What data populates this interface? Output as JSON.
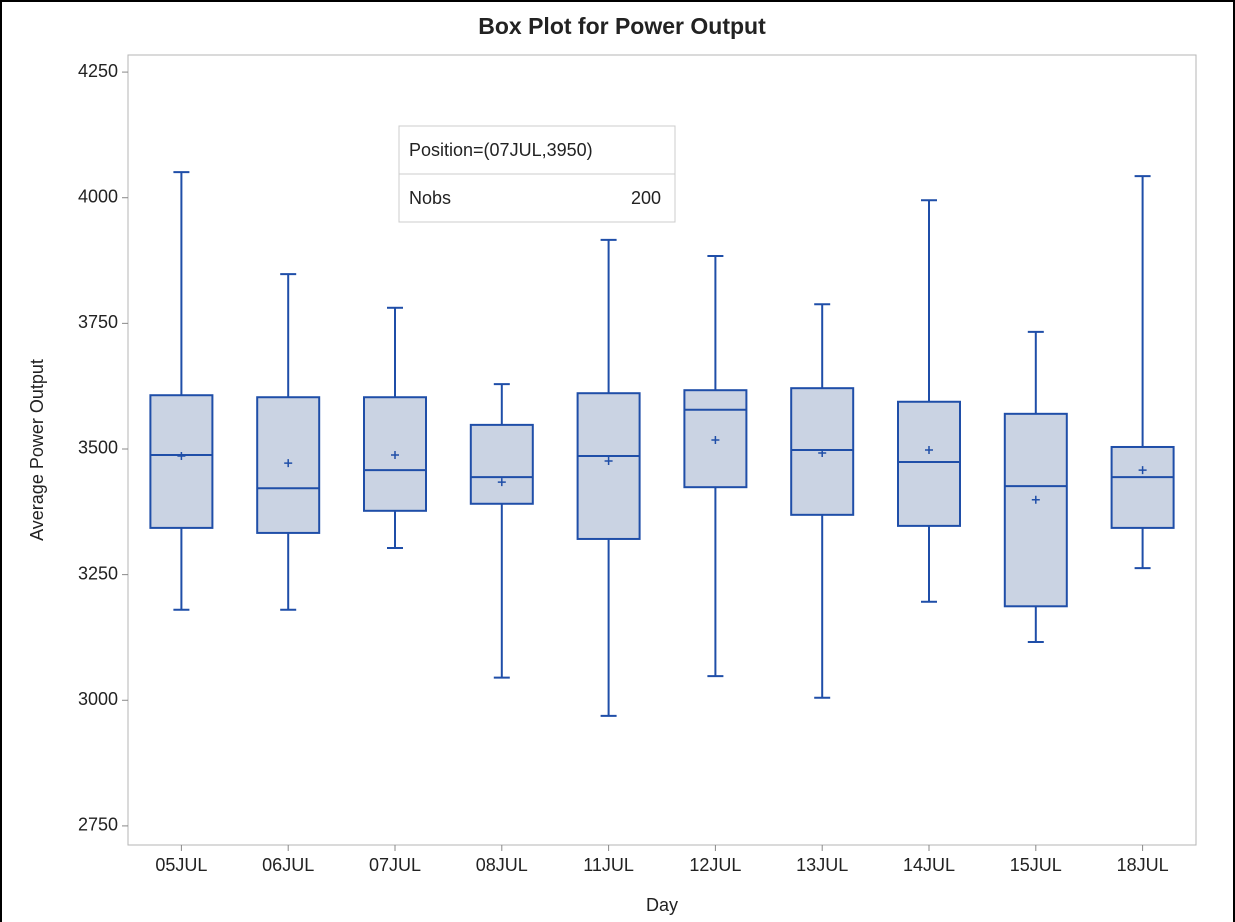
{
  "chart_data": {
    "type": "box",
    "title": "Box Plot for Power Output",
    "x_label": "Day",
    "y_label": "Average Power Output",
    "categories": [
      "05JUL",
      "06JUL",
      "07JUL",
      "08JUL",
      "11JUL",
      "12JUL",
      "13JUL",
      "14JUL",
      "15JUL",
      "18JUL"
    ],
    "max": [
      4051,
      3848,
      3781,
      3629,
      3916,
      3884,
      3788,
      3995,
      3733,
      4043
    ],
    "q3": [
      3607,
      3603,
      3603,
      3548,
      3611,
      3617,
      3621,
      3594,
      3570,
      3504
    ],
    "median": [
      3488,
      3422,
      3458,
      3444,
      3486,
      3578,
      3498,
      3474,
      3426,
      3444
    ],
    "mean": [
      3486,
      3472,
      3488,
      3434,
      3476,
      3518,
      3492,
      3498,
      3399,
      3458
    ],
    "q1": [
      3343,
      3333,
      3377,
      3391,
      3321,
      3424,
      3369,
      3347,
      3187,
      3343
    ],
    "min": [
      3180,
      3180,
      3303,
      3045,
      2969,
      3048,
      3005,
      3196,
      3116,
      3263
    ],
    "color": "#1f4ea8",
    "fill": "#cad3e3",
    "ylim": [
      2712,
      4284
    ],
    "yticks": [
      2750,
      3000,
      3250,
      3500,
      3750,
      4000,
      4250
    ],
    "inset": {
      "header": "Position=(07JUL,3950)",
      "label": "Nobs",
      "value": "200"
    }
  }
}
